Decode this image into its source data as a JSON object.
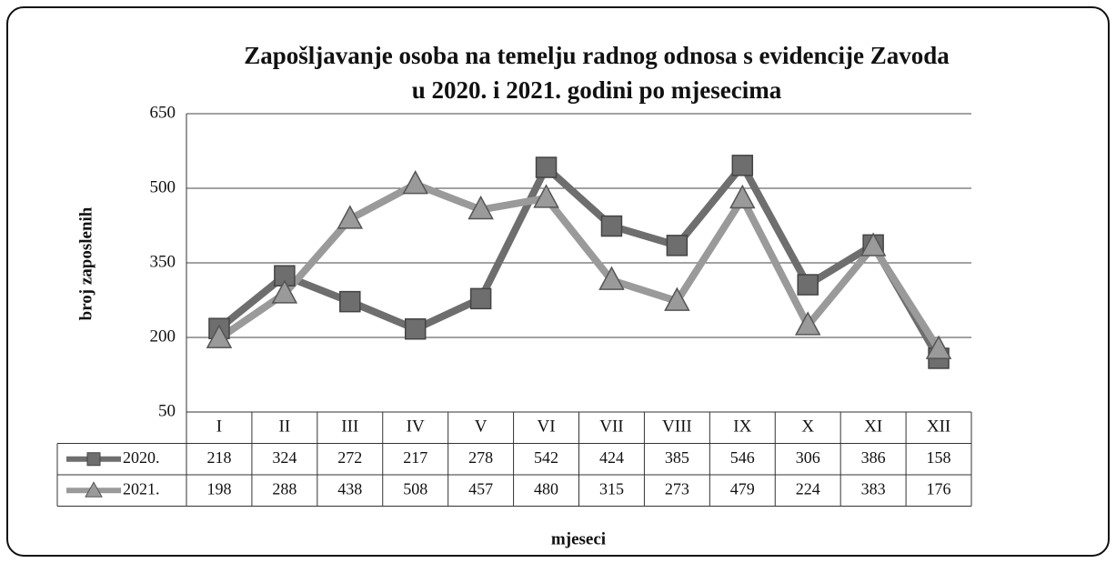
{
  "chart_data": {
    "type": "line",
    "title": [
      "Zapošljavanje osoba na temelju radnog odnosa s evidencije Zavoda",
      "u 2020. i 2021. godini po mjesecima"
    ],
    "xlabel": "mjeseci",
    "ylabel": "broj zaposlenih",
    "categories": [
      "I",
      "II",
      "III",
      "IV",
      "V",
      "VI",
      "VII",
      "VIII",
      "IX",
      "X",
      "XI",
      "XII"
    ],
    "series": [
      {
        "name": "2020.",
        "color": "#6e6e6e",
        "marker": "square",
        "values": [
          218,
          324,
          272,
          217,
          278,
          542,
          424,
          385,
          546,
          306,
          386,
          158
        ]
      },
      {
        "name": "2021.",
        "color": "#9a9a9a",
        "marker": "triangle",
        "values": [
          198,
          288,
          438,
          508,
          457,
          480,
          315,
          273,
          479,
          224,
          383,
          176
        ]
      }
    ],
    "ylim": [
      50,
      650
    ],
    "yticks": [
      50,
      200,
      350,
      500,
      650
    ],
    "grid": true
  }
}
